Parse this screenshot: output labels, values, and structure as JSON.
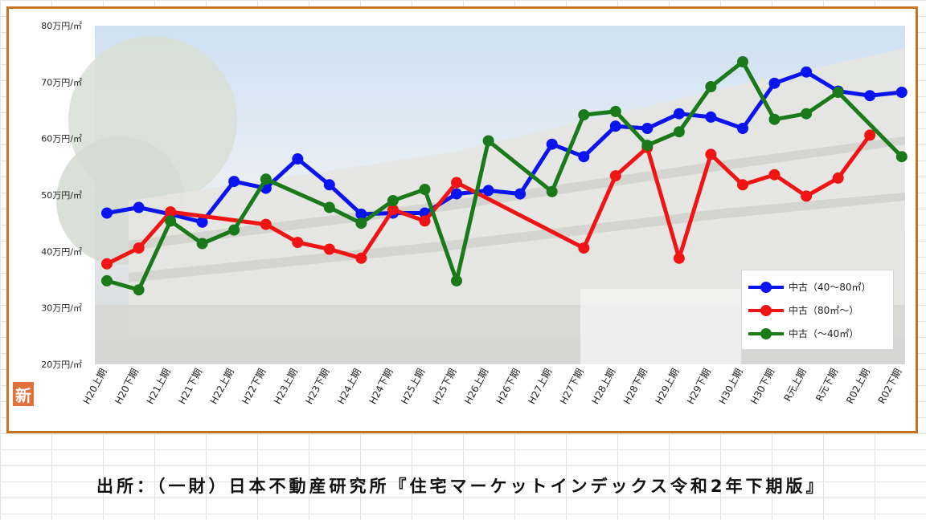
{
  "colors": {
    "series_1": "#0a14f0",
    "series_2": "#f01414",
    "series_3": "#1a7a1a",
    "frame": "#c8741e",
    "badge": "#e2703a"
  },
  "badge_text": "新",
  "source_text": "出所：（一財）日本不動産研究所『住宅マーケットインデックス令和2年下期版』",
  "chart_data": {
    "type": "line",
    "title": "",
    "xlabel": "",
    "ylabel": "",
    "ylim": [
      20,
      80
    ],
    "y_tick_values": [
      20,
      30,
      40,
      50,
      60,
      70,
      80
    ],
    "y_tick_labels": [
      "20万円/㎡",
      "30万円/㎡",
      "40万円/㎡",
      "50万円/㎡",
      "60万円/㎡",
      "70万円/㎡",
      "80万円/㎡"
    ],
    "categories": [
      "H20上期",
      "H20下期",
      "H21上期",
      "H21下期",
      "H22上期",
      "H22下期",
      "H23上期",
      "H23下期",
      "H24上期",
      "H24下期",
      "H25上期",
      "H25下期",
      "H26上期",
      "H26下期",
      "H27上期",
      "H27下期",
      "H28上期",
      "H28下期",
      "H29上期",
      "H29下期",
      "H30上期",
      "H30下期",
      "R元上期",
      "R元下期",
      "R02上期",
      "R02下期"
    ],
    "legend_position": "bottom-right",
    "series": [
      {
        "name": "中古（40～80㎡）",
        "color": "#0a14f0",
        "values": [
          46.8,
          47.8,
          46.6,
          45.2,
          52.4,
          51.2,
          56.4,
          51.8,
          46.6,
          46.8,
          46.8,
          50.2,
          50.8,
          50.2,
          59.0,
          56.8,
          62.2,
          61.8,
          64.4,
          63.8,
          61.8,
          69.8,
          71.8,
          68.4,
          67.6,
          68.2
        ]
      },
      {
        "name": "中古（80㎡～）",
        "color": "#f01414",
        "values": [
          37.8,
          40.6,
          47.0,
          null,
          null,
          44.8,
          41.6,
          40.4,
          38.8,
          47.4,
          45.4,
          52.2,
          null,
          null,
          null,
          40.6,
          53.4,
          58.4,
          38.8,
          57.2,
          51.8,
          53.6,
          49.8,
          53.0,
          60.6,
          null
        ]
      },
      {
        "name": "中古（～40㎡）",
        "color": "#1a7a1a",
        "values": [
          34.8,
          33.2,
          45.4,
          41.4,
          43.8,
          52.8,
          null,
          47.8,
          45.0,
          49.0,
          51.0,
          34.8,
          59.6,
          null,
          50.6,
          64.2,
          64.8,
          58.8,
          61.2,
          69.2,
          73.6,
          63.4,
          64.4,
          68.2,
          null,
          56.8
        ]
      }
    ]
  }
}
